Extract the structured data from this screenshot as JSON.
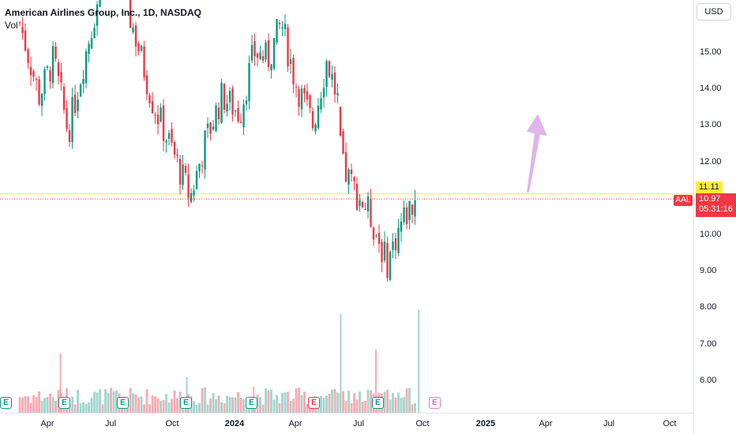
{
  "legend": {
    "title": "American Airlines Group, Inc., 1D, NASDAQ",
    "volume_label": "Vol"
  },
  "price_axis": {
    "currency": "USD",
    "ticks": [
      "15.00",
      "14.00",
      "13.00",
      "12.00",
      "10.00",
      "9.00",
      "8.00",
      "7.00",
      "6.00"
    ]
  },
  "time_axis": {
    "labels": [
      {
        "text": "Apr",
        "bold": false
      },
      {
        "text": "Jul",
        "bold": false
      },
      {
        "text": "Oct",
        "bold": false
      },
      {
        "text": "2024",
        "bold": true
      },
      {
        "text": "Apr",
        "bold": false
      },
      {
        "text": "Jul",
        "bold": false
      },
      {
        "text": "Oct",
        "bold": false
      },
      {
        "text": "2025",
        "bold": true
      },
      {
        "text": "Apr",
        "bold": false
      },
      {
        "text": "Jul",
        "bold": false
      },
      {
        "text": "Oct",
        "bold": false
      }
    ]
  },
  "horizontal_line": {
    "price": 11.11,
    "label": "11.11",
    "color": "#ffeb3b"
  },
  "last_price": {
    "symbol": "AAL",
    "price": 10.97,
    "label": "10.97",
    "countdown": "05:31:16",
    "color": "#f23645"
  },
  "earnings_flags": [
    {
      "letter": "E",
      "state": "past"
    },
    {
      "letter": "E",
      "state": "past"
    },
    {
      "letter": "E",
      "state": "past"
    },
    {
      "letter": "E",
      "state": "past"
    },
    {
      "letter": "E",
      "state": "past"
    },
    {
      "letter": "E",
      "state": "past-red"
    },
    {
      "letter": "E",
      "state": "past"
    },
    {
      "letter": "E",
      "state": "upcoming"
    }
  ],
  "colors": {
    "up": "#089981",
    "down": "#f23645",
    "arrow": "#d9a8e6",
    "grid": "#f0f3fa"
  },
  "chart_data": {
    "type": "candlestick",
    "title": "American Airlines Group, Inc., 1D, NASDAQ",
    "ylim": [
      5.6,
      16.3
    ],
    "price_path": [
      {
        "date": "2023-02-20",
        "close": 15.8
      },
      {
        "date": "2023-03-20",
        "close": 13.8
      },
      {
        "date": "2023-04-10",
        "close": 14.8
      },
      {
        "date": "2023-05-01",
        "close": 12.8
      },
      {
        "date": "2023-05-22",
        "close": 14.6
      },
      {
        "date": "2023-06-20",
        "close": 17.0
      },
      {
        "date": "2023-07-10",
        "close": 17.3
      },
      {
        "date": "2023-08-10",
        "close": 15.2
      },
      {
        "date": "2023-09-01",
        "close": 13.6
      },
      {
        "date": "2023-10-01",
        "close": 12.2
      },
      {
        "date": "2023-10-25",
        "close": 11.0
      },
      {
        "date": "2023-11-15",
        "close": 12.5
      },
      {
        "date": "2023-12-10",
        "close": 13.8
      },
      {
        "date": "2024-01-05",
        "close": 13.3
      },
      {
        "date": "2024-01-25",
        "close": 15.0
      },
      {
        "date": "2024-02-15",
        "close": 14.8
      },
      {
        "date": "2024-03-05",
        "close": 15.8
      },
      {
        "date": "2024-03-25",
        "close": 14.2
      },
      {
        "date": "2024-04-20",
        "close": 13.0
      },
      {
        "date": "2024-05-10",
        "close": 14.8
      },
      {
        "date": "2024-05-28",
        "close": 13.5
      },
      {
        "date": "2024-05-30",
        "close": 11.9
      },
      {
        "date": "2024-06-20",
        "close": 11.2
      },
      {
        "date": "2024-07-10",
        "close": 10.6
      },
      {
        "date": "2024-08-05",
        "close": 9.2
      },
      {
        "date": "2024-08-25",
        "close": 10.3
      },
      {
        "date": "2024-09-15",
        "close": 10.97
      }
    ],
    "projection_arrow": {
      "from": {
        "date": "2025-03-20",
        "price": 11.15
      },
      "to": {
        "date": "2025-04-05",
        "price": 13.3
      }
    },
    "volume_spikes": [
      {
        "date": "2023-04-20"
      },
      {
        "date": "2023-10-20"
      },
      {
        "date": "2024-01-25"
      },
      {
        "date": "2024-05-30"
      },
      {
        "date": "2024-07-20"
      },
      {
        "date": "2024-09-20"
      }
    ]
  }
}
